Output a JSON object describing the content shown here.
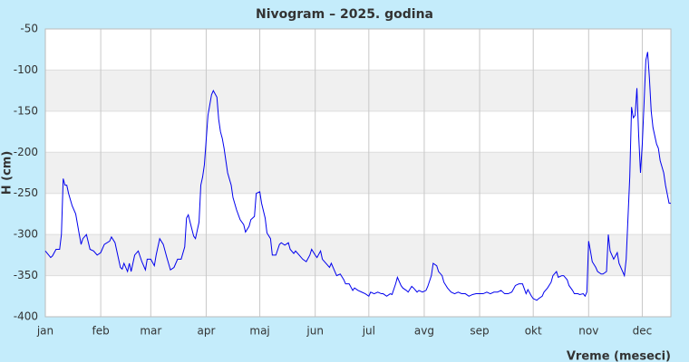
{
  "chart_data": {
    "type": "line",
    "title": "Nivogram – 2025. godina",
    "y_label": "H (cm)",
    "x_label": "Vreme (meseci)",
    "xlim": [
      0,
      350
    ],
    "xticks": [
      {
        "value": 0,
        "label": "jan"
      },
      {
        "value": 31,
        "label": "feb"
      },
      {
        "value": 59,
        "label": "mar"
      },
      {
        "value": 90,
        "label": "apr"
      },
      {
        "value": 120,
        "label": "maj"
      },
      {
        "value": 151,
        "label": "jun"
      },
      {
        "value": 181,
        "label": "jul"
      },
      {
        "value": 212,
        "label": "avg"
      },
      {
        "value": 243,
        "label": "sep"
      },
      {
        "value": 273,
        "label": "okt"
      },
      {
        "value": 304,
        "label": "nov"
      },
      {
        "value": 334,
        "label": "dec"
      }
    ],
    "ylim": [
      -400,
      -50
    ],
    "yticks": [
      -400,
      -350,
      -300,
      -250,
      -200,
      -150,
      -100,
      -50
    ],
    "grid": true,
    "series": [
      {
        "color": "#0000ee",
        "x": [
          0,
          3,
          4,
          6,
          8,
          9,
          10,
          11,
          12,
          13,
          15,
          17,
          19,
          20,
          21,
          23,
          25,
          27,
          29,
          31,
          33,
          36,
          37,
          39,
          41,
          42,
          43,
          44,
          46,
          47,
          48,
          50,
          52,
          54,
          56,
          57,
          59,
          61,
          62,
          64,
          66,
          68,
          70,
          72,
          74,
          76,
          78,
          79,
          80,
          81,
          83,
          84,
          86,
          87,
          88,
          89,
          90,
          91,
          93,
          94,
          96,
          97,
          98,
          99,
          100,
          101,
          102,
          104,
          105,
          107,
          109,
          111,
          112,
          114,
          115,
          117,
          118,
          120,
          121,
          123,
          124,
          126,
          127,
          129,
          131,
          132,
          134,
          136,
          137,
          139,
          140,
          142,
          144,
          146,
          148,
          149,
          151,
          152,
          154,
          155,
          157,
          159,
          160,
          162,
          163,
          165,
          167,
          168,
          170,
          172,
          173,
          175,
          177,
          179,
          181,
          182,
          184,
          186,
          188,
          189,
          191,
          193,
          194,
          196,
          197,
          199,
          200,
          202,
          203,
          205,
          206,
          208,
          209,
          211,
          213,
          214,
          216,
          217,
          219,
          220,
          222,
          223,
          225,
          227,
          229,
          231,
          233,
          235,
          237,
          239,
          241,
          243,
          245,
          247,
          249,
          251,
          253,
          255,
          257,
          259,
          261,
          263,
          265,
          267,
          269,
          270,
          272,
          273,
          275,
          276,
          278,
          279,
          281,
          283,
          284,
          286,
          287,
          289,
          290,
          292,
          293,
          295,
          296,
          298,
          299,
          301,
          302,
          303,
          304,
          305,
          306,
          308,
          309,
          311,
          312,
          314,
          315,
          316,
          318,
          320,
          321,
          323,
          324,
          325,
          327,
          328,
          329,
          330,
          331,
          332,
          333,
          334,
          335,
          336,
          337,
          338,
          339,
          340,
          342,
          343,
          344,
          346,
          347,
          349,
          350
        ],
        "values": [
          -320,
          -328,
          -326,
          -318,
          -318,
          -300,
          -232,
          -240,
          -240,
          -250,
          -265,
          -275,
          -300,
          -312,
          -305,
          -300,
          -318,
          -320,
          -325,
          -322,
          -312,
          -308,
          -303,
          -310,
          -330,
          -340,
          -342,
          -335,
          -345,
          -335,
          -345,
          -325,
          -320,
          -333,
          -343,
          -330,
          -330,
          -338,
          -325,
          -305,
          -312,
          -328,
          -343,
          -340,
          -330,
          -330,
          -315,
          -280,
          -276,
          -285,
          -302,
          -305,
          -285,
          -240,
          -230,
          -215,
          -185,
          -155,
          -130,
          -125,
          -133,
          -160,
          -175,
          -183,
          -195,
          -210,
          -225,
          -240,
          -255,
          -270,
          -282,
          -288,
          -297,
          -290,
          -282,
          -278,
          -250,
          -248,
          -262,
          -280,
          -298,
          -305,
          -325,
          -325,
          -312,
          -310,
          -313,
          -310,
          -318,
          -323,
          -320,
          -325,
          -330,
          -333,
          -325,
          -318,
          -325,
          -328,
          -320,
          -330,
          -335,
          -340,
          -335,
          -345,
          -350,
          -348,
          -355,
          -360,
          -360,
          -368,
          -365,
          -368,
          -370,
          -372,
          -375,
          -370,
          -372,
          -370,
          -372,
          -372,
          -375,
          -372,
          -373,
          -360,
          -352,
          -362,
          -365,
          -368,
          -370,
          -363,
          -365,
          -370,
          -368,
          -370,
          -368,
          -363,
          -350,
          -335,
          -338,
          -345,
          -350,
          -358,
          -365,
          -370,
          -372,
          -370,
          -372,
          -372,
          -375,
          -373,
          -372,
          -372,
          -372,
          -370,
          -372,
          -370,
          -370,
          -368,
          -372,
          -372,
          -370,
          -362,
          -360,
          -360,
          -372,
          -367,
          -375,
          -378,
          -380,
          -378,
          -375,
          -370,
          -365,
          -358,
          -350,
          -345,
          -352,
          -350,
          -350,
          -355,
          -362,
          -368,
          -372,
          -372,
          -373,
          -372,
          -375,
          -370,
          -308,
          -320,
          -333,
          -340,
          -345,
          -348,
          -348,
          -345,
          -300,
          -320,
          -330,
          -322,
          -335,
          -345,
          -350,
          -330,
          -230,
          -145,
          -158,
          -155,
          -122,
          -180,
          -225,
          -190,
          -140,
          -88,
          -78,
          -110,
          -150,
          -170,
          -190,
          -195,
          -210,
          -225,
          -240,
          -262,
          -262
        ]
      }
    ]
  }
}
